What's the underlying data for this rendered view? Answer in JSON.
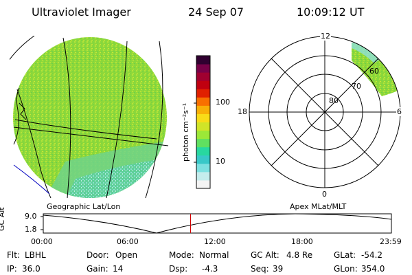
{
  "header": {
    "title": "Ultraviolet Imager",
    "date": "24 Sep 07",
    "time": "10:09:12 UT"
  },
  "colorbar": {
    "label": "photon cm⁻²s⁻¹",
    "tick_high": "100",
    "tick_low": "10",
    "colors": [
      "#f4f4f4",
      "#c4ecec",
      "#7ce0e0",
      "#38c8c8",
      "#28d8a0",
      "#60e060",
      "#9ce838",
      "#d0e428",
      "#f8dc18",
      "#f8b008",
      "#f87000",
      "#e02000",
      "#c00010",
      "#a00030",
      "#780048",
      "#300030"
    ]
  },
  "left_panel": {
    "caption": "Geographic Lat/Lon"
  },
  "polar_panel": {
    "caption": "Apex MLat/MLT",
    "mlt_labels": {
      "top": "12",
      "left": "18",
      "right": "6",
      "bottom": "0"
    },
    "lat_labels": [
      "80",
      "70",
      "60"
    ]
  },
  "timeline": {
    "axis_label": "GC Alt",
    "y_top": "9.0",
    "y_bottom": "1.8",
    "ticks": [
      "00:00",
      "06:00",
      "12:00",
      "18:00",
      "23:59"
    ],
    "current_time_hours": 10.153
  },
  "status": {
    "flt_label": "Flt:",
    "flt_value": "LBHL",
    "ip_label": "IP:",
    "ip_value": "36.0",
    "door_label": "Door:",
    "door_value": "Open",
    "gain_label": "Gain:",
    "gain_value": "14",
    "mode_label": "Mode:",
    "mode_value": "Normal",
    "dsp_label": "Dsp:",
    "dsp_value": "-4.3",
    "gcalt_label": "GC Alt:",
    "gcalt_value": "4.8 Re",
    "seq_label": "Seq:",
    "seq_value": "39",
    "glat_label": "GLat:",
    "glat_value": "-54.2",
    "glon_label": "GLon:",
    "glon_value": "354.0"
  }
}
